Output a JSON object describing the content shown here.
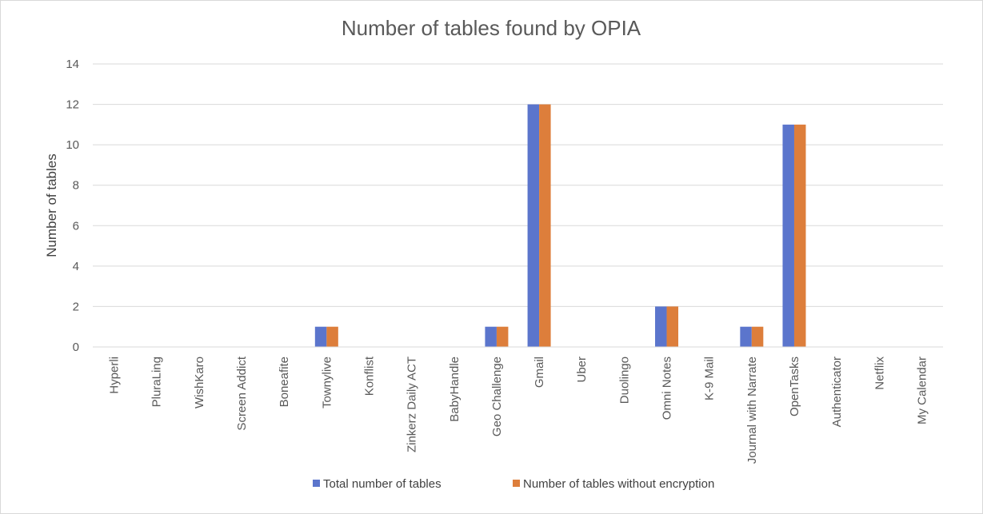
{
  "chart_data": {
    "type": "bar",
    "title": "Number of tables found by OPIA",
    "xlabel": "",
    "ylabel": "Number of tables",
    "ylim": [
      0,
      14
    ],
    "yticks": [
      0,
      2,
      4,
      6,
      8,
      10,
      12,
      14
    ],
    "grid": true,
    "legend_position": "bottom",
    "categories": [
      "Hyperli",
      "PluraLing",
      "WishKaro",
      "Screen Addict",
      "Boneafite",
      "Townylive",
      "Konflist",
      "Zinkerz Daily ACT",
      "BabyHandle",
      "Geo Challenge",
      "Gmail",
      "Uber",
      "Duolingo",
      "Omni Notes",
      "K-9 Mail",
      "Journal with Narrate",
      "OpenTasks",
      "Authenticator",
      "Netflix",
      "My Calendar"
    ],
    "series": [
      {
        "name": "Total number of tables",
        "color": "#5b75cc",
        "values": [
          0,
          0,
          0,
          0,
          0,
          1,
          0,
          0,
          0,
          1,
          12,
          0,
          0,
          2,
          0,
          1,
          11,
          0,
          0,
          0
        ]
      },
      {
        "name": "Number of tables without encryption",
        "color": "#dd7e3b",
        "values": [
          0,
          0,
          0,
          0,
          0,
          1,
          0,
          0,
          0,
          1,
          12,
          0,
          0,
          2,
          0,
          1,
          11,
          0,
          0,
          0
        ]
      }
    ]
  }
}
